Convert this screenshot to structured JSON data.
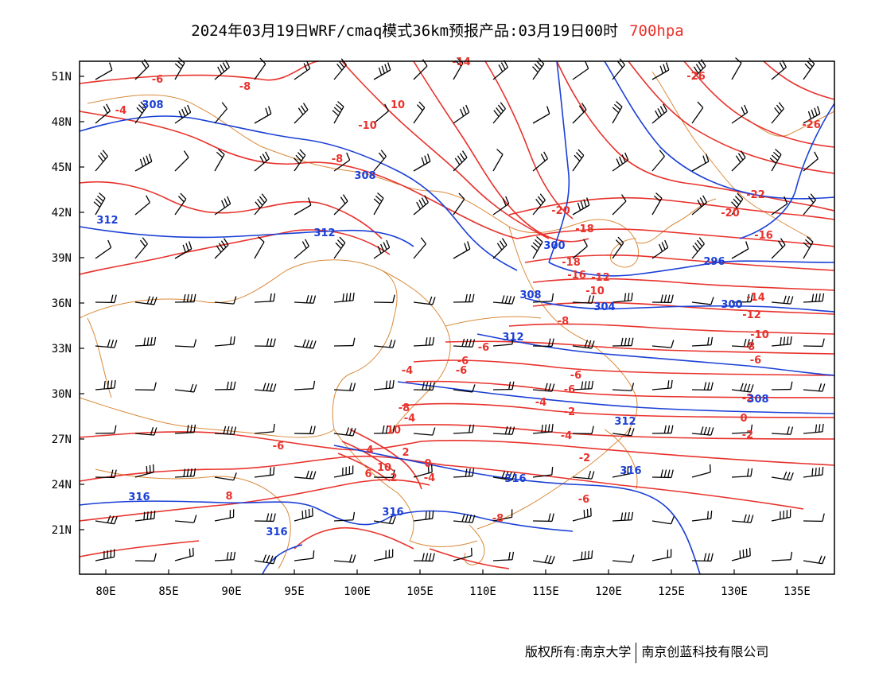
{
  "title": {
    "product": "2024年03月19日WRF/cmaq模式36km预报产品:03月19日00时",
    "level": "700hpa"
  },
  "axes": {
    "lat_labels": [
      "51N",
      "48N",
      "45N",
      "42N",
      "39N",
      "36N",
      "33N",
      "30N",
      "27N",
      "24N",
      "21N"
    ],
    "lon_labels": [
      "80E",
      "85E",
      "90E",
      "95E",
      "100E",
      "105E",
      "110E",
      "115E",
      "120E",
      "125E",
      "130E",
      "135E"
    ]
  },
  "contour_labels": {
    "temperature": [
      "-6",
      "-8",
      "-4",
      "-14",
      "10",
      "-10",
      "-26",
      "-26",
      "-8",
      "-22",
      "-20",
      "-20",
      "-18",
      "-16",
      "-18",
      "-16",
      "-12",
      "-10",
      "-14",
      "-12",
      "-10",
      "-8",
      "-6",
      "-6",
      "-6",
      "-6",
      "-4",
      "-2",
      "0",
      "-2",
      "-4",
      "2",
      "0",
      "-4",
      "-6",
      "-8",
      "-6",
      "10",
      "-4",
      "-2",
      "-2",
      "-4",
      "-6",
      "-6",
      "-8",
      "-8",
      "2",
      "4",
      "6",
      "8",
      "10"
    ],
    "geopotential": [
      "308",
      "308",
      "312",
      "312",
      "300",
      "296",
      "300",
      "308",
      "312",
      "304",
      "308",
      "312",
      "316",
      "316",
      "316",
      "316",
      "316"
    ]
  },
  "colors": {
    "temperature": "#e8322c",
    "geopotential": "#1a3fd6",
    "boundary": "#d98a3a",
    "wind": "#000000"
  },
  "footer": {
    "left": "版权所有:南京大学",
    "right": "南京创蓝科技有限公司"
  }
}
